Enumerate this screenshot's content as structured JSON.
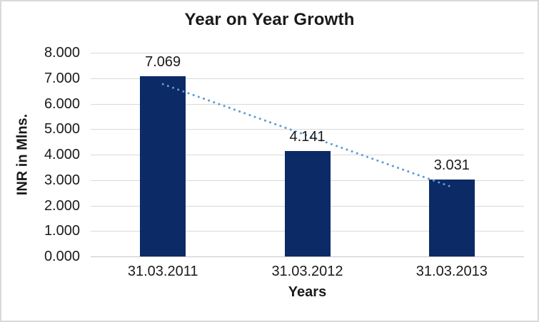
{
  "chart": {
    "colors": {
      "bar": "#0c2a66",
      "trendline": "#5b9bd5",
      "gridline": "#d9d9d9",
      "axis_line": "#c6c6c6",
      "text": "#1a1a1a",
      "border": "#d9d9d9",
      "background": "#ffffff"
    }
  },
  "chart_data": {
    "type": "bar",
    "title": "Year on Year Growth",
    "categories": [
      "31.03.2011",
      "31.03.2012",
      "31.03.2013"
    ],
    "values": [
      7.069,
      4.141,
      3.031
    ],
    "value_labels": [
      "7.069",
      "4.141",
      "3.031"
    ],
    "xlabel": "Years",
    "ylabel": "INR in Mlns.",
    "ylim": [
      0,
      8
    ],
    "ytick_interval": 1,
    "ytick_labels": [
      "8.000",
      "7.000",
      "6.000",
      "5.000",
      "4.000",
      "3.000",
      "2.000",
      "1.000",
      "0.000"
    ],
    "grid": true,
    "legend": false,
    "trendline": {
      "type": "linear",
      "style": "dotted",
      "start_value": 6.766,
      "end_value": 2.728
    }
  }
}
